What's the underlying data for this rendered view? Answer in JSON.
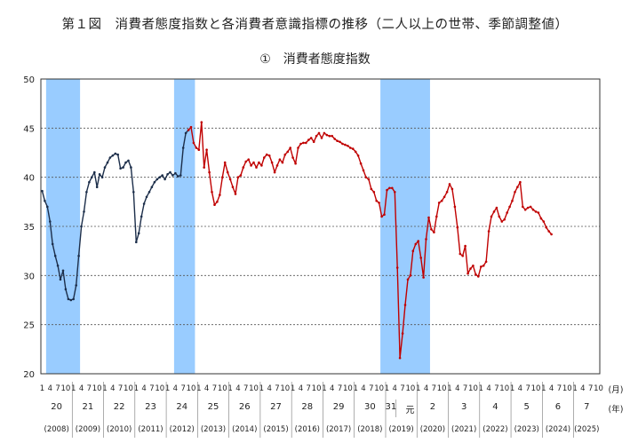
{
  "figure": {
    "title": "第１図　消費者態度指数と各消費者意識指標の推移（二人以上の世帯、季節調整値）",
    "subtitle": "①　消費者態度指数"
  },
  "chart_data": {
    "type": "line",
    "ylim": [
      20,
      50
    ],
    "yticks": [
      20,
      25,
      30,
      35,
      40,
      45,
      50
    ],
    "x_range": [
      "2008-01",
      "2025-10"
    ],
    "grid": "horizontal dashed",
    "unit_label_month": "(月)",
    "unit_label_year": "(年)",
    "era_labels": [
      "20",
      "21",
      "22",
      "23",
      "24",
      "25",
      "26",
      "27",
      "28",
      "29",
      "30",
      "31",
      "元",
      "2",
      "3",
      "4",
      "5",
      "6",
      "7"
    ],
    "year_labels": [
      "(2008)",
      "(2009)",
      "(2010)",
      "(2011)",
      "(2012)",
      "(2013)",
      "(2014)",
      "(2015)",
      "(2016)",
      "(2017)",
      "(2018)",
      "(2019)",
      "(2020)",
      "(2021)",
      "(2022)",
      "(2023)",
      "(2024)",
      "(2025)"
    ],
    "recessions": [
      {
        "start": "2008-03",
        "end": "2009-03"
      },
      {
        "start": "2012-04",
        "end": "2012-11"
      },
      {
        "start": "2018-11",
        "end": "2020-05"
      }
    ],
    "recession_color": "#99ccff",
    "series": [
      {
        "color": "#1c2e4a",
        "start": "2008-01",
        "values": [
          38.6,
          37.6,
          37.0,
          35.5,
          33.2,
          32.0,
          31.0,
          29.6,
          30.5,
          28.6,
          27.6,
          27.5,
          27.6,
          29.0,
          32.0,
          35.0,
          36.5,
          38.5,
          39.5,
          40.0,
          40.5,
          39.0,
          40.3,
          40.0,
          41.0,
          41.5,
          42.0,
          42.2,
          42.4,
          42.3,
          40.9,
          41.0,
          41.5,
          41.7,
          41.0,
          38.5,
          33.4,
          34.3,
          36.0,
          37.3,
          38.0,
          38.5,
          39.0,
          39.5,
          39.8,
          40.0,
          40.2,
          39.8,
          40.3,
          40.5,
          40.2,
          40.4,
          40.1,
          40.2,
          43.0,
          44.5,
          44.8
        ]
      },
      {
        "color": "#c00000",
        "start": "2012-09",
        "values": [
          44.8,
          45.1,
          43.5,
          43.0,
          42.8,
          45.6,
          41.0,
          42.8,
          40.5,
          38.5,
          37.2,
          37.5,
          38.2,
          40.0,
          41.5,
          40.5,
          39.8,
          39.0,
          38.3,
          40.0,
          40.2,
          41.0,
          41.6,
          41.8,
          41.2,
          41.5,
          41.0,
          41.5,
          41.2,
          42.0,
          42.3,
          42.2,
          41.5,
          40.5,
          41.2,
          41.8,
          41.5,
          42.3,
          42.6,
          43.0,
          42.0,
          41.4,
          43.0,
          43.4,
          43.5,
          43.5,
          43.8,
          44.0,
          43.6,
          44.2,
          44.5,
          44.0,
          44.5,
          44.3,
          44.2,
          44.2,
          43.9,
          43.7,
          43.6,
          43.4,
          43.3,
          43.2,
          43.0,
          42.9,
          42.6,
          42.2,
          41.4,
          40.7,
          40.0,
          39.8,
          38.8,
          38.5,
          37.6,
          37.4,
          36.0,
          36.2,
          38.7,
          38.9,
          38.9,
          38.5,
          30.8,
          21.6,
          24.1,
          27.0,
          29.6,
          30.0,
          32.5,
          33.2,
          33.5,
          31.8,
          29.8,
          33.7,
          35.9,
          34.7,
          34.4,
          36.0,
          37.4,
          37.6,
          38.0,
          38.5,
          39.3,
          38.8,
          37.0,
          34.9,
          32.2,
          32.0,
          33.0,
          30.2,
          30.7,
          31.0,
          30.1,
          29.9,
          30.9,
          31.0,
          31.4,
          34.5,
          36.0,
          36.5,
          36.9,
          36.0,
          35.5,
          35.7,
          36.4,
          37.0,
          37.6,
          38.5,
          39.0,
          39.5,
          37.0,
          36.7,
          36.9,
          37.0,
          36.7,
          36.5,
          36.4,
          35.8,
          35.5,
          34.9,
          34.5,
          34.2
        ]
      }
    ]
  }
}
